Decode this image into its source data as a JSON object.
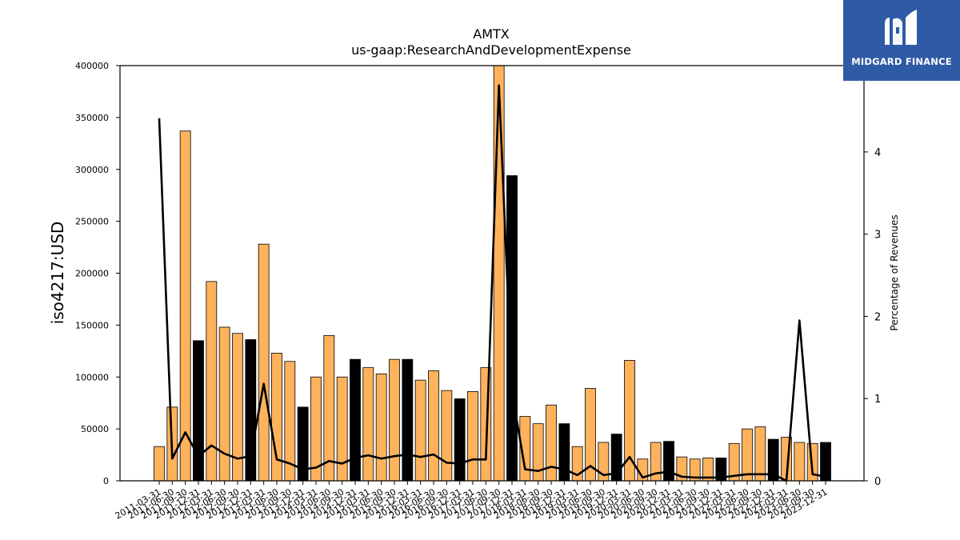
{
  "brand": {
    "name": "MIDGARD FINANCE",
    "logo_icon": "midgard-m-logo-icon",
    "color": "#2f5aa6"
  },
  "chart_data": {
    "type": "bar",
    "title": "AMTX",
    "subtitle": "us-gaap:ResearchAndDevelopmentExpense",
    "ylabel": "iso4217:USD",
    "y2label": "Percentage of Revenues",
    "ylim": [
      0,
      400000
    ],
    "y2lim": [
      0,
      5.05
    ],
    "yticks": [
      0,
      50000,
      100000,
      150000,
      200000,
      250000,
      300000,
      350000,
      400000
    ],
    "y2ticks": [
      0,
      1,
      2,
      3,
      4
    ],
    "grid": false,
    "colors": {
      "quarterly": "#ffb25c",
      "annual": "#000000",
      "line": "#000000"
    },
    "categories": [
      "2011-03-31",
      "2011-06-30",
      "2011-09-30",
      "2011-12-31",
      "2012-03-31",
      "2012-06-30",
      "2012-09-30",
      "2012-12-31",
      "2013-03-31",
      "2013-06-30",
      "2013-09-30",
      "2013-12-31",
      "2014-03-31",
      "2014-06-30",
      "2014-09-30",
      "2014-12-31",
      "2015-03-31",
      "2015-06-30",
      "2015-09-30",
      "2015-12-31",
      "2016-03-31",
      "2016-06-30",
      "2016-09-30",
      "2016-12-31",
      "2017-03-31",
      "2017-06-30",
      "2017-09-30",
      "2017-12-31",
      "2018-03-31",
      "2018-06-30",
      "2018-09-30",
      "2018-12-31",
      "2019-03-31",
      "2019-06-30",
      "2019-09-30",
      "2019-12-31",
      "2020-03-31",
      "2020-06-30",
      "2020-09-30",
      "2020-12-31",
      "2021-03-31",
      "2021-06-30",
      "2021-09-30",
      "2021-12-31",
      "2022-03-31",
      "2022-06-30",
      "2022-09-30",
      "2022-12-31",
      "2023-03-31",
      "2023-06-30",
      "2023-09-30",
      "2023-12-31"
    ],
    "values": [
      33000,
      71000,
      337000,
      135000,
      192000,
      148000,
      142000,
      136000,
      228000,
      123000,
      115000,
      71000,
      100000,
      140000,
      100000,
      117000,
      109000,
      103000,
      117000,
      117000,
      97000,
      106000,
      87000,
      79000,
      86000,
      109000,
      400000,
      294000,
      62000,
      55000,
      73000,
      55000,
      33000,
      89000,
      37000,
      45000,
      116000,
      21000,
      37000,
      38000,
      23000,
      21000,
      22000,
      22000,
      36000,
      50000,
      52000,
      40000,
      42000,
      37000,
      36000,
      37000
    ],
    "annual": [
      false,
      false,
      false,
      true,
      false,
      false,
      false,
      true,
      false,
      false,
      false,
      true,
      false,
      false,
      false,
      true,
      false,
      false,
      false,
      true,
      false,
      false,
      false,
      true,
      false,
      false,
      false,
      true,
      false,
      false,
      false,
      true,
      false,
      false,
      false,
      true,
      false,
      false,
      false,
      true,
      false,
      false,
      false,
      true,
      false,
      false,
      false,
      true,
      false,
      false,
      false,
      true
    ],
    "line_values": [
      4.41,
      0.27,
      0.59,
      0.3,
      0.43,
      0.33,
      0.27,
      0.3,
      1.18,
      0.26,
      0.21,
      0.14,
      0.16,
      0.24,
      0.21,
      0.28,
      0.31,
      0.27,
      0.3,
      0.32,
      0.29,
      0.32,
      0.22,
      0.21,
      0.26,
      0.26,
      4.81,
      1.08,
      0.14,
      0.12,
      0.17,
      0.14,
      0.07,
      0.18,
      0.07,
      0.09,
      0.29,
      0.04,
      0.09,
      0.11,
      0.05,
      0.04,
      0.04,
      0.04,
      0.06,
      0.08,
      0.08,
      0.08,
      0.0,
      1.95,
      0.08,
      0.05
    ]
  }
}
